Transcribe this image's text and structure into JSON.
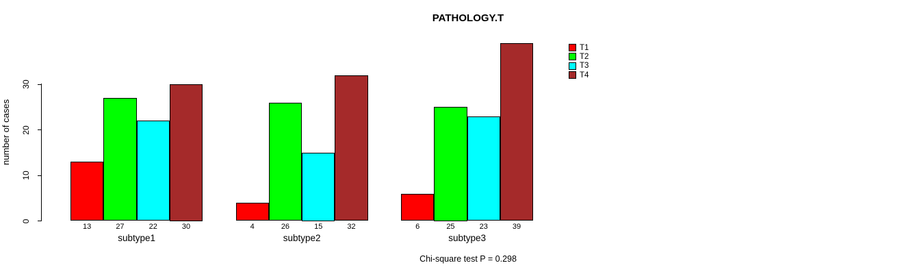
{
  "chart_data": {
    "type": "bar",
    "title": "PATHOLOGY.T",
    "ylabel": "number of cases",
    "xlabel": "",
    "footer": "Chi-square test P = 0.298",
    "categories": [
      "subtype1",
      "subtype2",
      "subtype3"
    ],
    "series": [
      {
        "name": "T1",
        "color": "#FF0000",
        "values": [
          13,
          4,
          6
        ]
      },
      {
        "name": "T2",
        "color": "#00FF00",
        "values": [
          27,
          26,
          25
        ]
      },
      {
        "name": "T3",
        "color": "#00FFFF",
        "values": [
          22,
          15,
          23
        ]
      },
      {
        "name": "T4",
        "color": "#A52A2A",
        "values": [
          30,
          32,
          39
        ]
      }
    ],
    "y_ticks": [
      0,
      10,
      20,
      30
    ],
    "ylim": [
      0,
      30
    ],
    "bar_value_labels_shown": true,
    "legend_position": "top-right",
    "grid": false,
    "background_color": "#ffffff",
    "axis_color": "#000000"
  }
}
